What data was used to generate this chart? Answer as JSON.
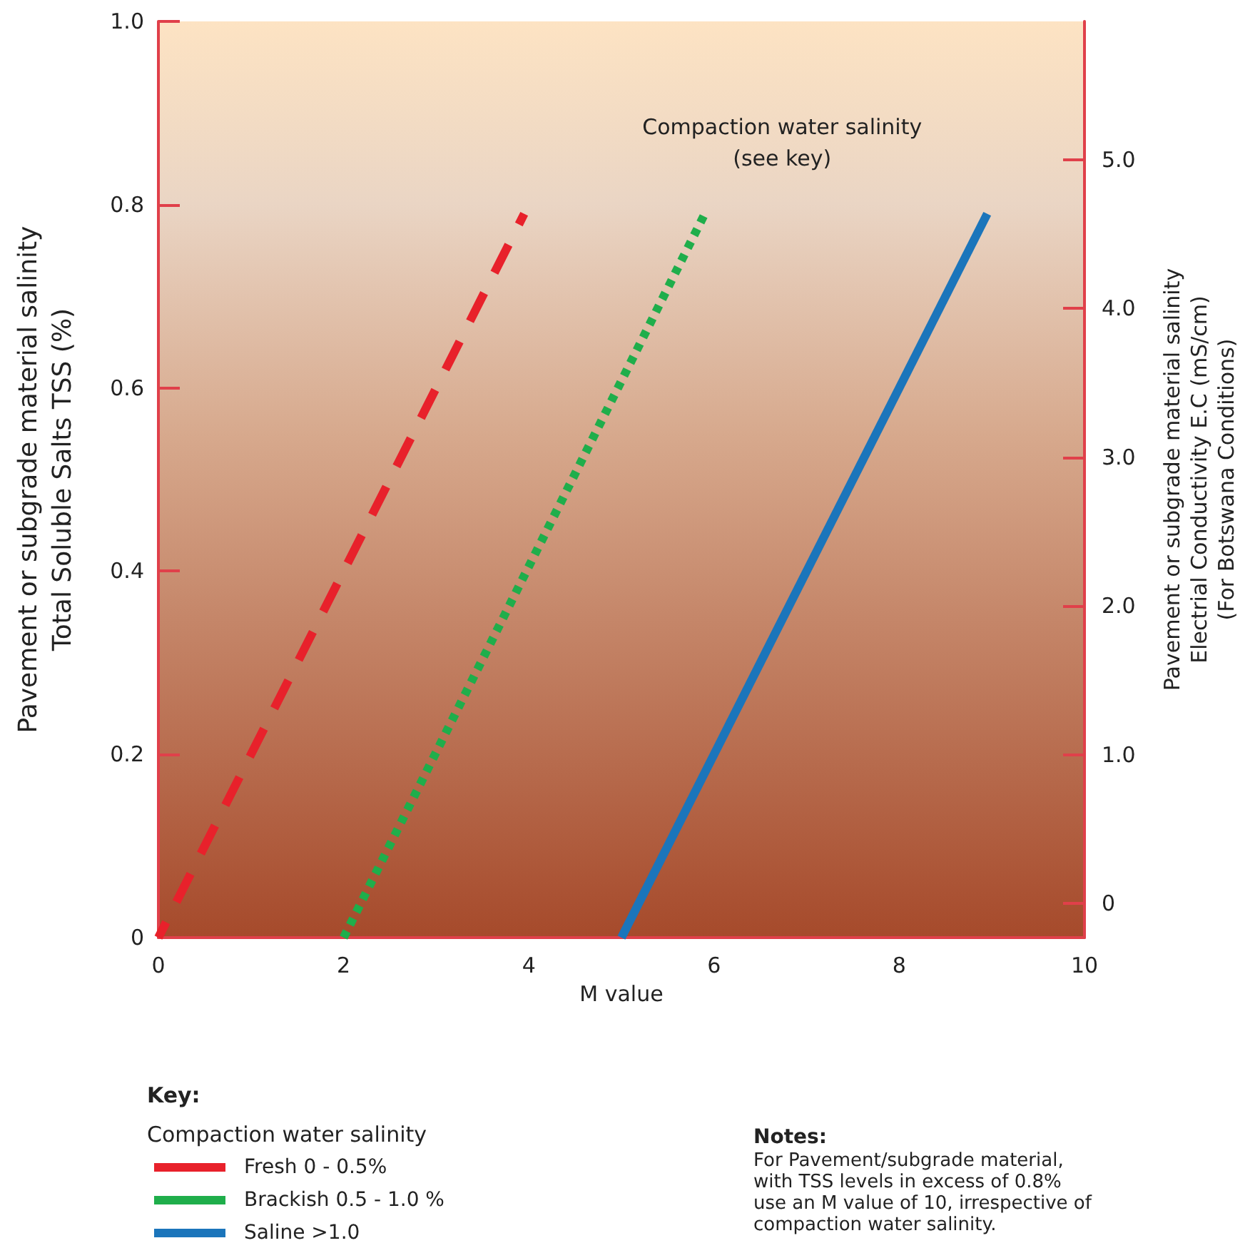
{
  "chart_data": {
    "type": "line",
    "xlabel": "M value",
    "ylabel": "Pavement or subgrade material salinity\nTotal Soluble Salts TSS (%)",
    "y2label": "Pavement or subgrade material salinity\nElectrial Conductivity E.C (mS/cm)\n(For Botswana Conditions)",
    "legend_title": "Key:",
    "annotations": [
      "Compaction water salinity\n(see key)",
      "Compaction water salinity",
      "Notes:\nFor Pavement/subgrade material,\nwith TSS levels in excess of 0.8%\nuse an M value of 10, irrespective of\ncompaction water salinity."
    ],
    "series": [
      {
        "name": "Fresh 0 - 0.5%",
        "color": "#e8212b",
        "line_style": "dashed",
        "x": [
          0,
          3.95
        ],
        "values": [
          0,
          0.79
        ]
      },
      {
        "name": "Brackish 0.5 - 1.0 %",
        "color": "#1fae4b",
        "line_style": "dotted",
        "x": [
          2.0,
          5.9
        ],
        "values": [
          0,
          0.79
        ]
      },
      {
        "name": "Saline >1.0",
        "color": "#1b75bb",
        "line_style": "solid",
        "x": [
          5.0,
          8.95
        ],
        "values": [
          0,
          0.79
        ]
      }
    ],
    "xlim": [
      0,
      10
    ],
    "xticks": [
      0,
      2,
      4,
      6,
      8,
      10
    ],
    "ylim": [
      0,
      1
    ],
    "yticks": [
      0,
      0.2,
      0.4,
      0.6,
      0.8,
      {
        "value": 1,
        "label": "1.0"
      }
    ],
    "y2lim": [
      -0.23,
      5.93
    ],
    "y2ticks": [
      0,
      {
        "value": 1,
        "label": "1.0"
      },
      {
        "value": 2,
        "label": "2.0"
      },
      {
        "value": 3,
        "label": "3.0"
      },
      {
        "value": 4,
        "label": "4.0"
      },
      {
        "value": 5,
        "label": "5.0"
      }
    ],
    "grid": false,
    "legend": "bottom left",
    "marker": "none"
  }
}
